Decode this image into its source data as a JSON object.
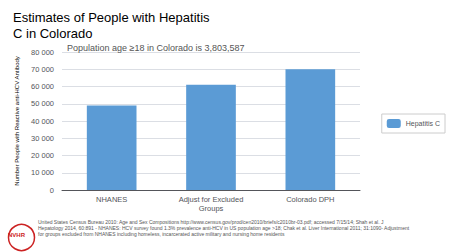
{
  "chart_data": {
    "type": "bar",
    "title": "Estimates of People with Hepatitis\nC in Colorado",
    "subtitle": "Population age ≥18 in Colorado is 3,803,587",
    "categories": [
      "NHANES",
      "Adjust for Excluded\nGroups",
      "Colorado DPH"
    ],
    "series": [
      {
        "name": "Hepatitis C",
        "color": "#5B9BD5",
        "values": [
          49000,
          61000,
          70000
        ]
      }
    ],
    "ylabel": "Number People with Reactive anti-HCV Antibody",
    "ylim": [
      0,
      80000
    ],
    "yticks": [
      0,
      {
        "value": 10000,
        "label": "10 000"
      },
      {
        "value": 20000,
        "label": "20 000"
      },
      {
        "value": 30000,
        "label": "30 000"
      },
      {
        "value": 40000,
        "label": "40 000"
      },
      {
        "value": 50000,
        "label": "50 000"
      },
      {
        "value": 60000,
        "label": "60 000"
      },
      {
        "value": 70000,
        "label": "70 000"
      },
      {
        "value": 80000,
        "label": "80 000"
      }
    ],
    "grid": true,
    "legend": "right",
    "footnote": "United States Census Bureau 2010: Age and Sex Compositions http://www.census.gov/prod/cen2010/briefs/c2010br-03.pdf; accessed 7/15/14; Shah et al. J\nHepatology 2014, 60:891 - NHANES: HCV survey found 1.3% prevalence anti-HCV in US population age >18; Chak et al. Liver International 2011; 31:1090- Adjustment\nfor groups excluded from NHANES including homeless, incarcerated active military and nursing home residents",
    "logo_text": "NVHR"
  }
}
